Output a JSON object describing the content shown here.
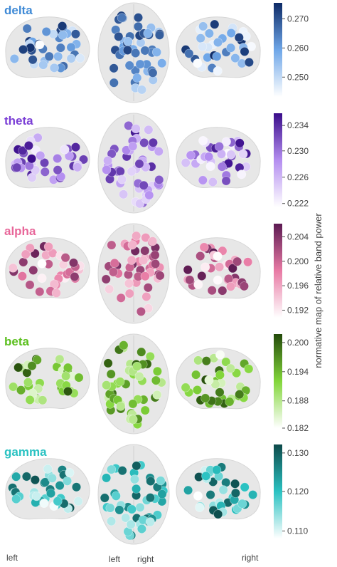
{
  "bands": [
    {
      "title": "delta",
      "title_color": "#3f8ad6",
      "cmap_light": "#ffffff",
      "cmap_mid": "#6ea6e8",
      "cmap_dark": "#0d2a66",
      "ticks": [
        {
          "label": "0.270",
          "frac": 0.83
        },
        {
          "label": "0.260",
          "frac": 0.52
        },
        {
          "label": "0.250",
          "frac": 0.21
        }
      ]
    },
    {
      "title": "theta",
      "title_color": "#7b3fd6",
      "cmap_light": "#ffffff",
      "cmap_mid": "#b48ef0",
      "cmap_dark": "#3a0d8a",
      "ticks": [
        {
          "label": "0.234",
          "frac": 0.87
        },
        {
          "label": "0.230",
          "frac": 0.6
        },
        {
          "label": "0.226",
          "frac": 0.32
        },
        {
          "label": "0.222",
          "frac": 0.04
        }
      ]
    },
    {
      "title": "alpha",
      "title_color": "#e8679a",
      "cmap_light": "#ffffff",
      "cmap_mid": "#e87aa4",
      "cmap_dark": "#5c1a52",
      "ticks": [
        {
          "label": "0.204",
          "frac": 0.86
        },
        {
          "label": "0.200",
          "frac": 0.6
        },
        {
          "label": "0.196",
          "frac": 0.34
        },
        {
          "label": "0.192",
          "frac": 0.08
        }
      ]
    },
    {
      "title": "beta",
      "title_color": "#5bbf1e",
      "cmap_light": "#ffffff",
      "cmap_mid": "#82d63a",
      "cmap_dark": "#234a0a",
      "ticks": [
        {
          "label": "0.200",
          "frac": 0.91
        },
        {
          "label": "0.194",
          "frac": 0.6
        },
        {
          "label": "0.188",
          "frac": 0.29
        },
        {
          "label": "0.182",
          "frac": 0.0
        }
      ]
    },
    {
      "title": "gamma",
      "title_color": "#2ac2c2",
      "cmap_light": "#ffffff",
      "cmap_mid": "#2ac2c2",
      "cmap_dark": "#0d4a4a",
      "ticks": [
        {
          "label": "0.130",
          "frac": 0.91
        },
        {
          "label": "0.120",
          "frac": 0.5
        },
        {
          "label": "0.110",
          "frac": 0.08
        }
      ]
    }
  ],
  "axis_title": "normative map of relative band power",
  "bottom_labels": {
    "left_sagittal": "left",
    "axial_left": "left",
    "axial_right": "right",
    "right_sagittal": "right"
  }
}
